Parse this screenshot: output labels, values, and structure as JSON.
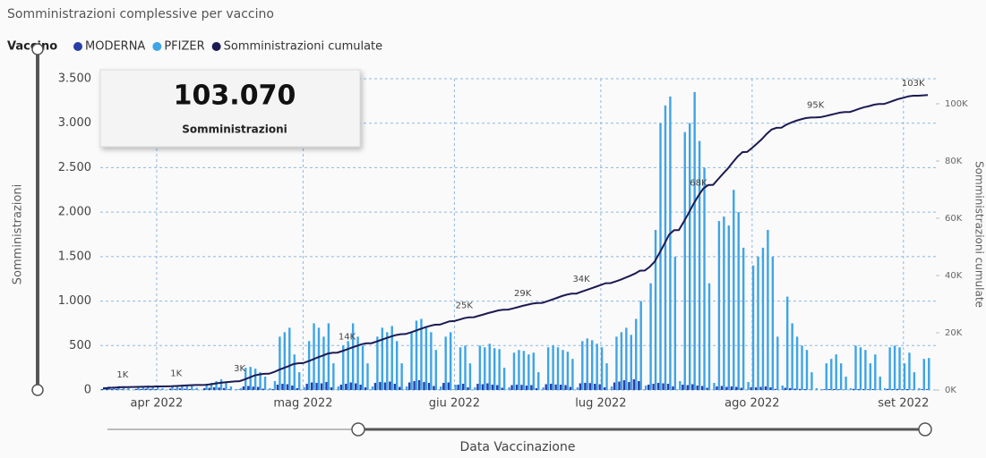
{
  "card": {
    "value": "103.070",
    "label": "Somministrazioni"
  },
  "chart_data": {
    "type": "bar-line",
    "title": "Somministrazioni complessive per vaccino",
    "legend_title": "Vaccino",
    "x_label": "Data Vaccinazione",
    "y_label": "Somministrazioni",
    "y2_label": "Somministrazioni cumulate",
    "grid": true,
    "categories": [
      null,
      null,
      null,
      null,
      null,
      null,
      null,
      null,
      null,
      null,
      null,
      "apr 2022",
      null,
      null,
      null,
      null,
      null,
      null,
      null,
      null,
      null,
      null,
      null,
      null,
      null,
      null,
      null,
      null,
      null,
      null,
      null,
      null,
      null,
      null,
      null,
      null,
      null,
      null,
      null,
      null,
      null,
      "mag 2022",
      null,
      null,
      null,
      null,
      null,
      null,
      null,
      null,
      null,
      null,
      null,
      null,
      null,
      null,
      null,
      null,
      null,
      null,
      null,
      null,
      null,
      null,
      null,
      null,
      null,
      null,
      null,
      null,
      null,
      null,
      "giu 2022",
      null,
      null,
      null,
      null,
      null,
      null,
      null,
      null,
      null,
      null,
      null,
      null,
      null,
      null,
      null,
      null,
      null,
      null,
      null,
      null,
      null,
      null,
      null,
      null,
      null,
      null,
      null,
      null,
      null,
      "lug 2022",
      null,
      null,
      null,
      null,
      null,
      null,
      null,
      null,
      null,
      null,
      null,
      null,
      null,
      null,
      null,
      null,
      null,
      null,
      null,
      null,
      null,
      null,
      null,
      null,
      null,
      null,
      null,
      null,
      null,
      null,
      "ago 2022",
      null,
      null,
      null,
      null,
      null,
      null,
      null,
      null,
      null,
      null,
      null,
      null,
      null,
      null,
      null,
      null,
      null,
      null,
      null,
      null,
      null,
      null,
      null,
      null,
      null,
      null,
      null,
      null,
      null,
      null,
      "set 2022",
      null,
      null,
      null,
      null,
      null
    ],
    "series": [
      {
        "name": "MODERNA",
        "color": "#2b3da8",
        "values": [
          10,
          15,
          10,
          12,
          8,
          3,
          0,
          12,
          10,
          15,
          12,
          10,
          4,
          0,
          15,
          12,
          18,
          14,
          10,
          5,
          0,
          20,
          25,
          30,
          28,
          22,
          8,
          0,
          5,
          40,
          45,
          38,
          35,
          15,
          2,
          10,
          60,
          70,
          65,
          50,
          20,
          3,
          70,
          85,
          80,
          75,
          90,
          30,
          3,
          60,
          70,
          85,
          75,
          60,
          30,
          3,
          80,
          90,
          85,
          95,
          70,
          35,
          3,
          85,
          100,
          110,
          90,
          80,
          45,
          4,
          80,
          85,
          5,
          60,
          70,
          30,
          2,
          70,
          65,
          75,
          60,
          55,
          25,
          2,
          55,
          60,
          58,
          50,
          55,
          20,
          2,
          65,
          70,
          62,
          60,
          55,
          35,
          2,
          75,
          80,
          78,
          70,
          65,
          30,
          3,
          85,
          95,
          110,
          90,
          120,
          100,
          4,
          60,
          70,
          80,
          75,
          70,
          40,
          3,
          60,
          55,
          65,
          50,
          45,
          25,
          2,
          40,
          45,
          35,
          40,
          35,
          25,
          2,
          30,
          30,
          35,
          40,
          30,
          12,
          1,
          25,
          20,
          15,
          12,
          10,
          5,
          0,
          0,
          8,
          10,
          10,
          8,
          4,
          0,
          12,
          10,
          10,
          8,
          10,
          4,
          0,
          12,
          10,
          12,
          8,
          10,
          5,
          0,
          8,
          9
        ]
      },
      {
        "name": "PFIZER",
        "color": "#3fa4e6",
        "values": [
          30,
          40,
          35,
          45,
          40,
          20,
          5,
          40,
          45,
          50,
          40,
          45,
          20,
          5,
          50,
          55,
          60,
          50,
          45,
          25,
          5,
          60,
          80,
          100,
          120,
          90,
          40,
          10,
          20,
          250,
          260,
          240,
          200,
          150,
          20,
          100,
          600,
          650,
          700,
          400,
          200,
          30,
          550,
          750,
          700,
          600,
          750,
          300,
          40,
          500,
          550,
          750,
          600,
          500,
          300,
          40,
          600,
          700,
          650,
          720,
          550,
          300,
          40,
          650,
          780,
          800,
          700,
          650,
          450,
          40,
          600,
          650,
          60,
          480,
          500,
          300,
          30,
          500,
          480,
          520,
          470,
          460,
          250,
          30,
          420,
          450,
          440,
          400,
          420,
          200,
          30,
          480,
          500,
          480,
          450,
          430,
          350,
          30,
          550,
          580,
          560,
          520,
          480,
          300,
          40,
          600,
          650,
          700,
          620,
          800,
          1000,
          50,
          1200,
          1800,
          3000,
          3200,
          3300,
          1500,
          100,
          2900,
          3000,
          3350,
          2800,
          2500,
          1200,
          80,
          1900,
          1950,
          1850,
          2250,
          2000,
          1600,
          90,
          1400,
          1500,
          1600,
          1800,
          1500,
          600,
          50,
          1050,
          750,
          600,
          500,
          450,
          200,
          20,
          10,
          300,
          350,
          400,
          300,
          150,
          20,
          500,
          480,
          450,
          300,
          400,
          150,
          20,
          480,
          500,
          480,
          300,
          420,
          200,
          20,
          350,
          360
        ]
      },
      {
        "name": "Somministrazioni cumulate",
        "color": "#1c1a52",
        "axis": "y2",
        "values": [
          600,
          700,
          800,
          900,
          1000,
          1030,
          1050,
          1080,
          1120,
          1160,
          1200,
          1240,
          1260,
          1270,
          1300,
          1400,
          1500,
          1600,
          1700,
          1750,
          1760,
          1800,
          2000,
          2250,
          2500,
          2700,
          2850,
          3000,
          3100,
          3700,
          4350,
          5050,
          5450,
          5650,
          5700,
          6250,
          7000,
          7700,
          8300,
          9050,
          9350,
          9400,
          10000,
          10700,
          11400,
          12000,
          12700,
          13000,
          13050,
          13600,
          14200,
          14800,
          15400,
          16000,
          16300,
          16350,
          16900,
          17500,
          18100,
          18700,
          19200,
          19500,
          19550,
          20100,
          20700,
          21300,
          21900,
          22400,
          22800,
          22850,
          23400,
          24000,
          24100,
          24600,
          25100,
          25400,
          25450,
          25950,
          26400,
          26900,
          27350,
          27800,
          28050,
          28100,
          28500,
          28950,
          29400,
          29800,
          30200,
          30400,
          30450,
          31000,
          31600,
          32200,
          32800,
          33300,
          33650,
          33700,
          34300,
          34900,
          35500,
          36100,
          36700,
          37300,
          37350,
          37900,
          38500,
          39200,
          39900,
          40700,
          41700,
          41750,
          43000,
          44800,
          47800,
          51000,
          54300,
          55800,
          55900,
          58800,
          61800,
          65100,
          67900,
          70400,
          71600,
          71700,
          73600,
          75500,
          77300,
          79500,
          81500,
          83100,
          83200,
          84600,
          86100,
          87700,
          89500,
          91000,
          91600,
          91650,
          92700,
          93450,
          94050,
          94550,
          95000,
          95200,
          95220,
          95300,
          95700,
          96100,
          96500,
          96900,
          97100,
          97120,
          97700,
          98300,
          98800,
          99200,
          99700,
          99900,
          99920,
          100500,
          101100,
          101700,
          102100,
          102600,
          102800,
          102820,
          102950,
          103070
        ],
        "value_labels": [
          null,
          null,
          null,
          null,
          "1K",
          null,
          null,
          null,
          null,
          null,
          null,
          null,
          null,
          null,
          null,
          "1K",
          null,
          null,
          null,
          null,
          null,
          null,
          null,
          null,
          null,
          null,
          null,
          null,
          "3K",
          null,
          null,
          null,
          null,
          null,
          null,
          null,
          null,
          null,
          null,
          null,
          null,
          null,
          null,
          null,
          null,
          null,
          null,
          null,
          null,
          null,
          "14K",
          null,
          null,
          null,
          null,
          null,
          null,
          null,
          null,
          null,
          null,
          null,
          null,
          null,
          null,
          null,
          null,
          null,
          null,
          null,
          null,
          null,
          null,
          null,
          "25K",
          null,
          null,
          null,
          null,
          null,
          null,
          null,
          null,
          null,
          null,
          null,
          "29K",
          null,
          null,
          null,
          null,
          null,
          null,
          null,
          null,
          null,
          null,
          null,
          "34K",
          null,
          null,
          null,
          null,
          null,
          null,
          null,
          null,
          null,
          null,
          null,
          null,
          null,
          null,
          null,
          null,
          null,
          null,
          null,
          null,
          null,
          null,
          null,
          "68K",
          null,
          null,
          null,
          null,
          null,
          null,
          null,
          null,
          null,
          null,
          null,
          null,
          null,
          null,
          null,
          null,
          null,
          null,
          null,
          null,
          null,
          null,
          null,
          "95K",
          null,
          null,
          null,
          null,
          null,
          null,
          null,
          null,
          null,
          null,
          null,
          null,
          null,
          null,
          null,
          null,
          null,
          null,
          null,
          "103K",
          null,
          null,
          null
        ]
      }
    ],
    "ylim": [
      0,
      3500
    ],
    "yticks": [
      0,
      500,
      {
        "value": 1000,
        "label": "1.000"
      },
      {
        "value": 1500,
        "label": "1.500"
      },
      {
        "value": 2000,
        "label": "2.000"
      },
      {
        "value": 2500,
        "label": "2.500"
      },
      {
        "value": 3000,
        "label": "3.000"
      },
      {
        "value": 3500,
        "label": "3.500"
      }
    ],
    "y2lim": [
      0,
      108750
    ],
    "y2ticks": [
      {
        "value": 0,
        "label": "0K"
      },
      {
        "value": 20000,
        "label": "20K"
      },
      {
        "value": 40000,
        "label": "40K"
      },
      {
        "value": 60000,
        "label": "60K"
      },
      {
        "value": 80000,
        "label": "80K"
      },
      {
        "value": 100000,
        "label": "100K"
      }
    ]
  }
}
